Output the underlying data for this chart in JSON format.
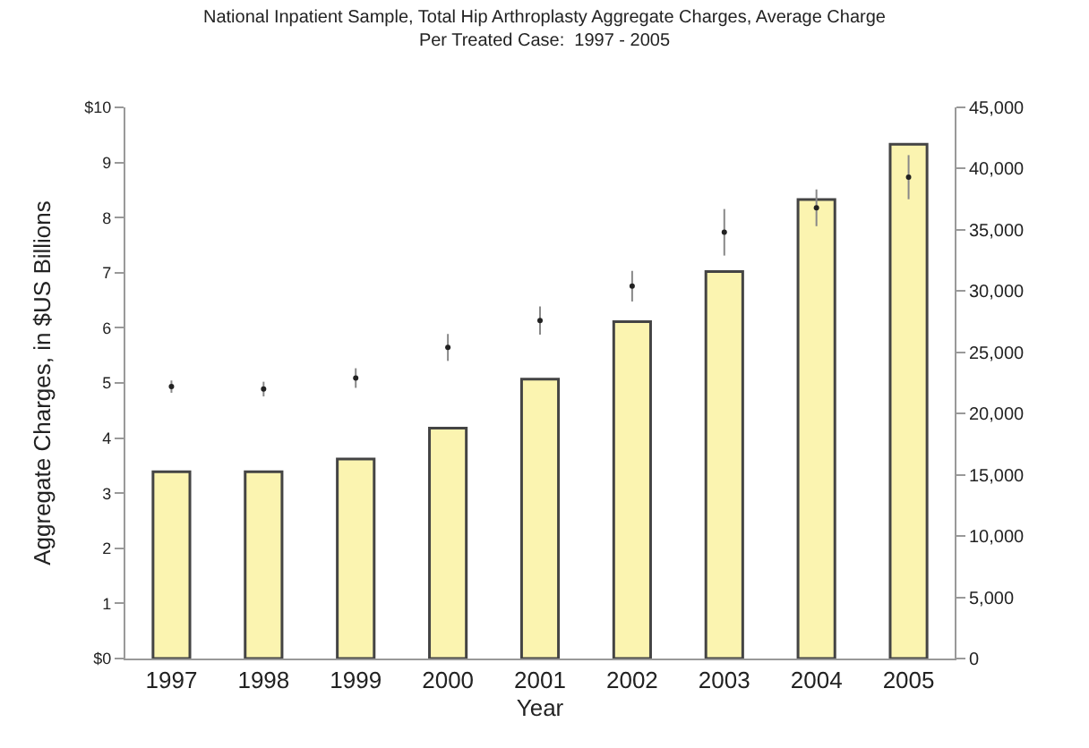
{
  "chart_data": {
    "type": "bar",
    "title": "National Inpatient Sample, Total Hip Arthroplasty Aggregate Charges, Average Charge\nPer Treated Case:  1997 - 2005",
    "xlabel": "Year",
    "ylabel": "Aggregate Charges, in $US Billions",
    "categories": [
      "1997",
      "1998",
      "1999",
      "2000",
      "2001",
      "2002",
      "2003",
      "2004",
      "2005"
    ],
    "series": [
      {
        "color": "#fbf4b0",
        "values": [
          3.39,
          3.39,
          3.62,
          4.18,
          5.07,
          6.11,
          7.02,
          8.33,
          9.33
        ]
      },
      {
        "type": "scatter",
        "axis": "y2",
        "color": "#222222",
        "marker": "circle",
        "values": [
          22200,
          22000,
          22900,
          25400,
          27600,
          30400,
          34800,
          36800,
          39300
        ],
        "errors": [
          500,
          600,
          800,
          1100,
          1150,
          1250,
          1900,
          1500,
          1800
        ]
      }
    ],
    "ylim": [
      0,
      10
    ],
    "yticks": [
      {
        "value": 0,
        "label": "$0"
      },
      1,
      2,
      3,
      4,
      5,
      6,
      7,
      8,
      9,
      {
        "value": 10,
        "label": "$10"
      }
    ],
    "y2lim": [
      0,
      45000
    ],
    "y2ticks": [
      0,
      {
        "value": 5000,
        "label": "5,000"
      },
      {
        "value": 10000,
        "label": "10,000"
      },
      {
        "value": 15000,
        "label": "15,000"
      },
      {
        "value": 20000,
        "label": "20,000"
      },
      {
        "value": 25000,
        "label": "25,000"
      },
      {
        "value": 30000,
        "label": "30,000"
      },
      {
        "value": 35000,
        "label": "35,000"
      },
      {
        "value": 40000,
        "label": "40,000"
      },
      {
        "value": 45000,
        "label": "45,000"
      }
    ],
    "tick_labels": [
      "x",
      "y",
      "y2"
    ]
  }
}
